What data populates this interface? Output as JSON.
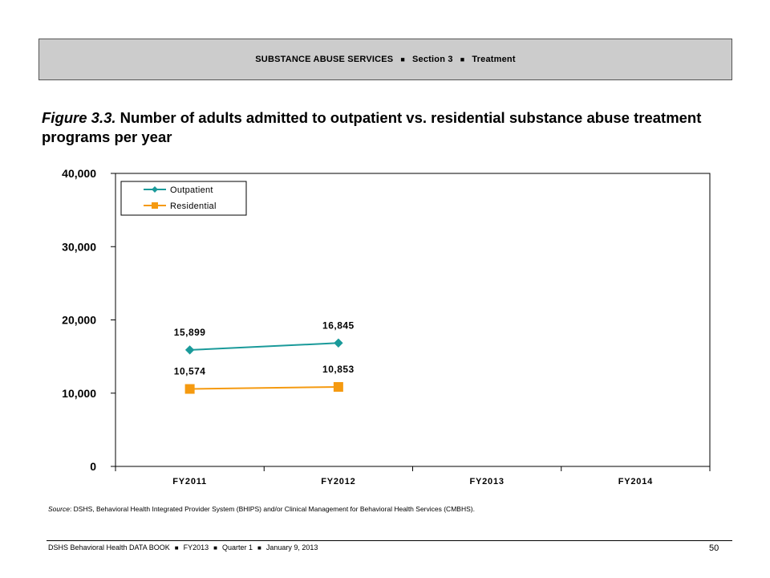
{
  "header": {
    "section_name": "SUBSTANCE ABUSE SERVICES",
    "section_number": "Section 3",
    "section_topic": "Treatment",
    "separator": "■"
  },
  "figure": {
    "label": "Figure 3.3.",
    "title": "Number of adults admitted to outpatient vs. residential substance abuse treatment programs per year"
  },
  "chart_data": {
    "type": "line",
    "title": "",
    "xlabel": "",
    "ylabel": "",
    "categories": [
      "FY2011",
      "FY2012",
      "FY2013",
      "FY2014"
    ],
    "ylim": [
      0,
      40000
    ],
    "yticks": [
      0,
      10000,
      20000,
      30000,
      40000
    ],
    "ytick_labels": [
      "0",
      "10,000",
      "20,000",
      "30,000",
      "40,000"
    ],
    "grid": false,
    "legend_position": "top-left",
    "series": [
      {
        "name": "Outpatient",
        "color": "#1a9a9a",
        "marker": "diamond",
        "values": [
          15899,
          16845,
          null,
          null
        ],
        "labels": [
          "15,899",
          "16,845",
          "",
          ""
        ]
      },
      {
        "name": "Residential",
        "color": "#f59a10",
        "marker": "square",
        "values": [
          10574,
          10853,
          null,
          null
        ],
        "labels": [
          "10,574",
          "10,853",
          "",
          ""
        ]
      }
    ]
  },
  "source": {
    "label": "Source",
    "text": ": DSHS, Behavioral Health Integrated Provider System (BHIPS) and/or Clinical Management for Behavioral Health Services (CMBHS)."
  },
  "footer": {
    "publication": "DSHS Behavioral Health DATA BOOK",
    "fiscal_year": "FY2013",
    "quarter": "Quarter 1",
    "date": "January  9, 2013",
    "separator": "■",
    "page_number": "50"
  }
}
